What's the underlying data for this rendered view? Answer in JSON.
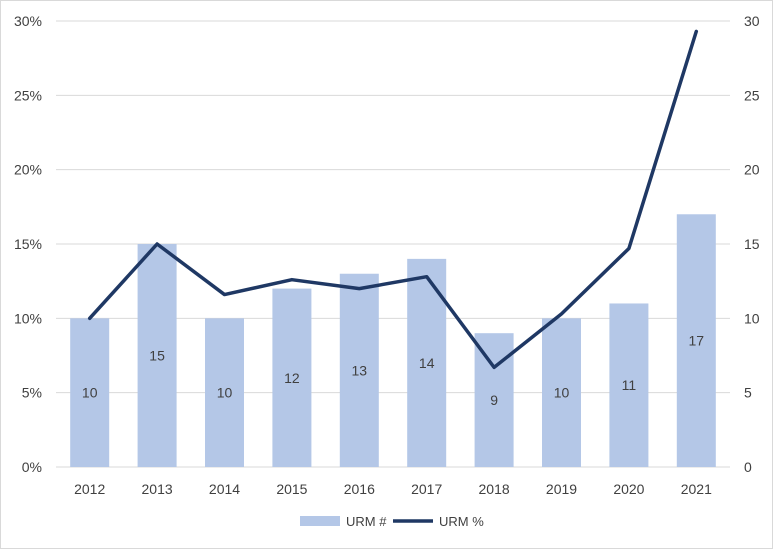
{
  "chart_data": {
    "type": "bar+line",
    "title": "",
    "categories": [
      "2012",
      "2013",
      "2014",
      "2015",
      "2016",
      "2017",
      "2018",
      "2019",
      "2020",
      "2021"
    ],
    "series": [
      {
        "name": "URM #",
        "type": "bar",
        "axis": "secondary",
        "values": [
          10,
          15,
          10,
          12,
          13,
          14,
          9,
          10,
          11,
          17
        ],
        "color": "#b4c7e7",
        "data_labels": [
          "10",
          "15",
          "10",
          "12",
          "13",
          "14",
          "9",
          "10",
          "11",
          "17"
        ]
      },
      {
        "name": "URM %",
        "type": "line",
        "axis": "primary",
        "values": [
          10.0,
          15.0,
          11.6,
          12.6,
          12.0,
          12.8,
          6.7,
          10.3,
          14.7,
          29.3
        ],
        "color": "#1f3864"
      }
    ],
    "primary_axis": {
      "ylim": [
        0,
        30
      ],
      "ticks": [
        0,
        5,
        10,
        15,
        20,
        25,
        30
      ],
      "tick_labels": [
        "0%",
        "5%",
        "10%",
        "15%",
        "20%",
        "25%",
        "30%"
      ]
    },
    "secondary_axis": {
      "ylim": [
        0,
        30
      ],
      "ticks": [
        0,
        5,
        10,
        15,
        20,
        25,
        30
      ],
      "tick_labels": [
        "0",
        "5",
        "10",
        "15",
        "20",
        "25",
        "30"
      ]
    },
    "grid": true,
    "gridline_color": "#d9d9d9",
    "legend": {
      "position": "bottom",
      "entries": [
        "URM #",
        "URM %"
      ]
    }
  }
}
